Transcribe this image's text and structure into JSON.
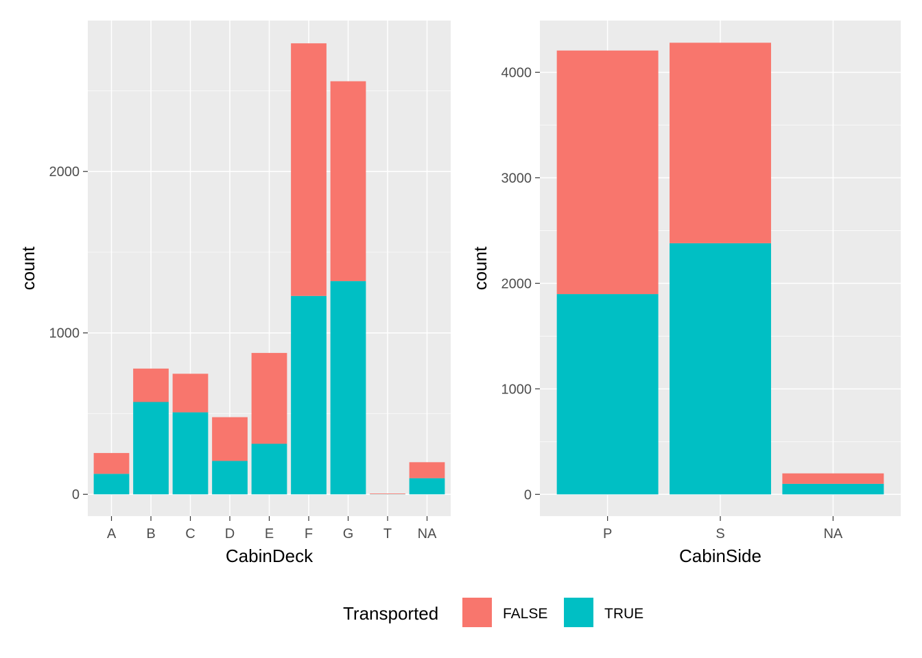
{
  "colors": {
    "panel_background": "#EBEBEB",
    "grid": "#FFFFFF",
    "FALSE": "#F8766D",
    "TRUE": "#00BFC4"
  },
  "legend": {
    "title": "Transported",
    "entries": [
      {
        "label": "FALSE",
        "color": "#F8766D"
      },
      {
        "label": "TRUE",
        "color": "#00BFC4"
      }
    ],
    "placement": "bottom"
  },
  "chart_data": [
    {
      "type": "bar",
      "stacked": true,
      "xlabel": "CabinDeck",
      "ylabel": "count",
      "categories": [
        "A",
        "B",
        "C",
        "D",
        "E",
        "F",
        "G",
        "T",
        "NA"
      ],
      "series": [
        {
          "name": "FALSE",
          "values": [
            129,
            207,
            239,
            271,
            563,
            1565,
            1238,
            4,
            99
          ]
        },
        {
          "name": "TRUE",
          "values": [
            127,
            572,
            508,
            207,
            313,
            1229,
            1321,
            1,
            100
          ]
        }
      ],
      "yticks": [
        0,
        1000,
        2000
      ],
      "ylim": [
        -135,
        2935
      ],
      "grid": true
    },
    {
      "type": "bar",
      "stacked": true,
      "xlabel": "CabinSide",
      "ylabel": "count",
      "categories": [
        "P",
        "S",
        "NA"
      ],
      "series": [
        {
          "name": "FALSE",
          "values": [
            2308,
            1900,
            99
          ]
        },
        {
          "name": "TRUE",
          "values": [
            1898,
            2380,
            100
          ]
        }
      ],
      "yticks": [
        0,
        1000,
        2000,
        3000,
        4000
      ],
      "ylim": [
        -206,
        4490
      ],
      "grid": true
    }
  ]
}
